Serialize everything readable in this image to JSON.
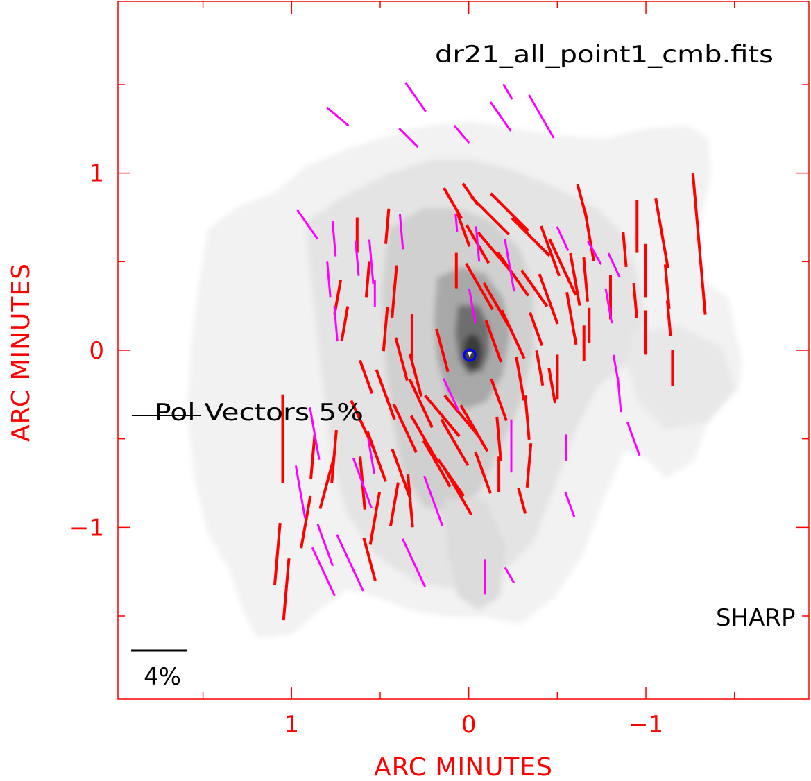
{
  "chart_data": {
    "type": "scatter",
    "title": "dr21_all_point1_cmb.fits",
    "xlabel": "ARC MINUTES",
    "ylabel": "ARC MINUTES",
    "xlim": [
      1.98,
      -1.92
    ],
    "ylim": [
      -1.97,
      1.97
    ],
    "x_ticks": [
      {
        "value": 1,
        "label": "1"
      },
      {
        "value": 0,
        "label": "0"
      },
      {
        "value": -1,
        "label": "−1"
      }
    ],
    "y_ticks": [
      {
        "value": 1,
        "label": "1"
      },
      {
        "value": 0,
        "label": "0"
      },
      {
        "value": -1,
        "label": "−1"
      }
    ],
    "instrument_label": "SHARP",
    "reference_vector_label": "Pol Vectors 5%",
    "scale_bar_label": "4%",
    "colors": {
      "axes": "#ff0000",
      "vectors_primary": "#ff0000",
      "vectors_secondary": "#ff00ff",
      "peak_marker": "#0000ff",
      "labels": "#000000"
    },
    "series": [
      {
        "color": "#ff0000",
        "vectors": [
          [
            1.05,
            -0.5,
            90,
            0.5
          ],
          [
            1.03,
            -1.35,
            85,
            0.35
          ],
          [
            1.08,
            -1.15,
            85,
            0.35
          ],
          [
            0.92,
            -0.97,
            80,
            0.3
          ],
          [
            0.88,
            -0.6,
            85,
            0.25
          ],
          [
            0.76,
            -0.6,
            85,
            0.3
          ],
          [
            0.8,
            -0.75,
            75,
            0.3
          ],
          [
            0.74,
            0.3,
            80,
            0.2
          ],
          [
            0.7,
            0.15,
            80,
            0.2
          ],
          [
            0.63,
            0.65,
            90,
            0.2
          ],
          [
            0.57,
            0.4,
            85,
            0.2
          ],
          [
            0.58,
            -0.15,
            110,
            0.2
          ],
          [
            0.6,
            -0.42,
            115,
            0.3
          ],
          [
            0.6,
            -0.75,
            95,
            0.3
          ],
          [
            0.52,
            -0.6,
            110,
            0.3
          ],
          [
            0.53,
            -0.95,
            80,
            0.3
          ],
          [
            0.56,
            -1.18,
            105,
            0.25
          ],
          [
            0.47,
            -0.25,
            110,
            0.3
          ],
          [
            0.47,
            0.12,
            85,
            0.25
          ],
          [
            0.42,
            0.33,
            85,
            0.3
          ],
          [
            0.46,
            0.7,
            85,
            0.2
          ],
          [
            0.38,
            -0.05,
            105,
            0.25
          ],
          [
            0.36,
            -0.44,
            115,
            0.3
          ],
          [
            0.38,
            -0.7,
            110,
            0.3
          ],
          [
            0.42,
            -0.87,
            80,
            0.25
          ],
          [
            0.33,
            -0.85,
            95,
            0.3
          ],
          [
            0.32,
            0.08,
            90,
            0.25
          ],
          [
            0.3,
            -0.14,
            105,
            0.25
          ],
          [
            0.27,
            -0.3,
            115,
            0.3
          ],
          [
            0.25,
            -0.5,
            120,
            0.3
          ],
          [
            0.18,
            -0.64,
            120,
            0.3
          ],
          [
            0.15,
            -0.37,
            130,
            0.3
          ],
          [
            0.15,
            0.0,
            105,
            0.25
          ],
          [
            0.08,
            -0.52,
            120,
            0.3
          ],
          [
            0.1,
            -0.72,
            125,
            0.25
          ],
          [
            0.07,
            0.45,
            90,
            0.2
          ],
          [
            0.04,
            -0.37,
            130,
            0.3
          ],
          [
            0.06,
            -0.8,
            120,
            0.3
          ],
          [
            0.09,
            0.83,
            120,
            0.2
          ],
          [
            0.03,
            0.68,
            110,
            0.2
          ],
          [
            -0.01,
            0.88,
            125,
            0.15
          ],
          [
            -0.05,
            0.6,
            120,
            0.25
          ],
          [
            -0.06,
            0.36,
            120,
            0.3
          ],
          [
            -0.03,
            -0.44,
            120,
            0.3
          ],
          [
            -0.08,
            -0.69,
            110,
            0.25
          ],
          [
            -0.12,
            0.76,
            135,
            0.3
          ],
          [
            -0.15,
            0.55,
            130,
            0.3
          ],
          [
            -0.16,
            0.25,
            120,
            0.3
          ],
          [
            -0.14,
            0.05,
            110,
            0.25
          ],
          [
            -0.17,
            -0.28,
            110,
            0.25
          ],
          [
            -0.17,
            -0.5,
            95,
            0.25
          ],
          [
            -0.17,
            -0.7,
            90,
            0.2
          ],
          [
            -0.23,
            0.78,
            135,
            0.3
          ],
          [
            -0.25,
            0.43,
            125,
            0.3
          ],
          [
            -0.25,
            0.09,
            115,
            0.3
          ],
          [
            -0.29,
            -0.16,
            100,
            0.25
          ],
          [
            -0.33,
            -0.38,
            95,
            0.25
          ],
          [
            -0.34,
            -0.65,
            85,
            0.25
          ],
          [
            -0.3,
            -0.85,
            105,
            0.15
          ],
          [
            -0.35,
            0.64,
            135,
            0.3
          ],
          [
            -0.37,
            0.35,
            125,
            0.25
          ],
          [
            -0.38,
            0.12,
            110,
            0.2
          ],
          [
            -0.4,
            -0.1,
            100,
            0.2
          ],
          [
            -0.45,
            0.29,
            110,
            0.3
          ],
          [
            -0.46,
            0.56,
            110,
            0.3
          ],
          [
            -0.47,
            -0.2,
            100,
            0.2
          ],
          [
            -0.5,
            -0.15,
            90,
            0.25
          ],
          [
            -0.53,
            0.47,
            115,
            0.35
          ],
          [
            -0.58,
            0.18,
            100,
            0.3
          ],
          [
            -0.65,
            0.04,
            90,
            0.2
          ],
          [
            -0.6,
            0.4,
            100,
            0.3
          ],
          [
            -0.64,
            0.84,
            105,
            0.2
          ],
          [
            -0.68,
            0.65,
            100,
            0.3
          ],
          [
            -0.66,
            0.4,
            95,
            0.25
          ],
          [
            -0.68,
            0.14,
            90,
            0.2
          ],
          [
            -0.8,
            0.3,
            90,
            0.25
          ],
          [
            -0.88,
            0.57,
            95,
            0.2
          ],
          [
            -0.94,
            0.28,
            95,
            0.2
          ],
          [
            -0.95,
            0.7,
            90,
            0.3
          ],
          [
            -1.0,
            0.45,
            90,
            0.3
          ],
          [
            -1.0,
            0.1,
            90,
            0.25
          ],
          [
            -1.09,
            0.66,
            100,
            0.4
          ],
          [
            -1.12,
            0.36,
            95,
            0.25
          ],
          [
            -1.13,
            0.18,
            95,
            0.2
          ],
          [
            -1.15,
            -0.1,
            90,
            0.2
          ],
          [
            -1.3,
            0.6,
            95,
            0.8
          ]
        ]
      },
      {
        "color": "#ff00ff",
        "vectors": [
          [
            0.74,
            1.32,
            140,
            0.16
          ],
          [
            0.3,
            1.43,
            125,
            0.2
          ],
          [
            0.34,
            1.2,
            135,
            0.15
          ],
          [
            0.04,
            1.22,
            130,
            0.13
          ],
          [
            -0.18,
            1.32,
            125,
            0.2
          ],
          [
            -0.41,
            1.32,
            120,
            0.28
          ],
          [
            -0.22,
            1.46,
            120,
            0.1
          ],
          [
            -0.53,
            0.63,
            115,
            0.15
          ],
          [
            -0.71,
            0.55,
            120,
            0.15
          ],
          [
            -0.82,
            0.48,
            115,
            0.15
          ],
          [
            0.91,
            0.71,
            125,
            0.2
          ],
          [
            0.63,
            0.52,
            95,
            0.2
          ],
          [
            0.53,
            0.32,
            90,
            0.15
          ],
          [
            0.55,
            -0.6,
            100,
            0.2
          ],
          [
            0.6,
            -0.75,
            110,
            0.3
          ],
          [
            0.67,
            -1.2,
            115,
            0.35
          ],
          [
            0.82,
            -1.25,
            115,
            0.3
          ],
          [
            0.81,
            -1.1,
            110,
            0.25
          ],
          [
            0.95,
            -0.8,
            100,
            0.3
          ],
          [
            0.87,
            -0.47,
            100,
            0.3
          ],
          [
            0.75,
            0.15,
            95,
            0.2
          ],
          [
            0.79,
            0.4,
            95,
            0.2
          ],
          [
            0.76,
            0.63,
            95,
            0.2
          ],
          [
            0.55,
            0.5,
            95,
            0.25
          ],
          [
            0.38,
            0.67,
            95,
            0.2
          ],
          [
            0.31,
            -1.2,
            115,
            0.3
          ],
          [
            0.2,
            -0.85,
            110,
            0.3
          ],
          [
            0.1,
            -0.25,
            115,
            0.2
          ],
          [
            0.07,
            0.72,
            95,
            0.1
          ],
          [
            -0.05,
            0.6,
            95,
            0.2
          ],
          [
            -0.02,
            0.25,
            100,
            0.2
          ],
          [
            -0.23,
            0.48,
            100,
            0.3
          ],
          [
            -0.24,
            -0.54,
            90,
            0.3
          ],
          [
            -0.09,
            -1.28,
            90,
            0.2
          ],
          [
            -0.23,
            -1.27,
            120,
            0.1
          ],
          [
            -0.57,
            -0.87,
            110,
            0.15
          ],
          [
            -0.55,
            -0.55,
            90,
            0.15
          ],
          [
            -0.79,
            0.25,
            100,
            0.2
          ],
          [
            -0.83,
            -0.1,
            100,
            0.15
          ],
          [
            -0.85,
            -0.25,
            95,
            0.2
          ],
          [
            -0.93,
            -0.5,
            110,
            0.2
          ]
        ]
      }
    ]
  }
}
